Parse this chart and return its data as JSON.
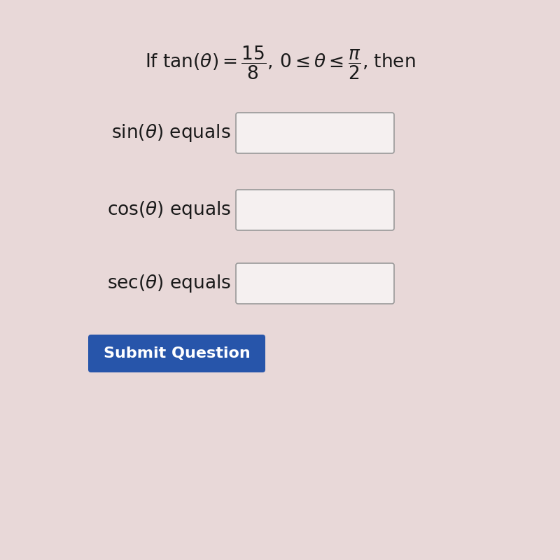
{
  "bg_color": "#e8d8d8",
  "title_line1": "If $\\tan(\\theta) = \\dfrac{15}{8},\\, 0 \\leq \\theta \\leq \\dfrac{\\pi}{2}$, then",
  "labels": [
    "$\\sin(\\theta)$ equals",
    "$\\cos(\\theta)$ equals",
    "$\\sec(\\theta)$ equals"
  ],
  "button_text": "Submit Question",
  "button_color": "#2755aa",
  "button_text_color": "#ffffff",
  "box_color": "#f5f0f0",
  "box_edge_color": "#999999",
  "text_color": "#1a1a1a",
  "title_fontsize": 19,
  "label_fontsize": 19,
  "button_fontsize": 16
}
